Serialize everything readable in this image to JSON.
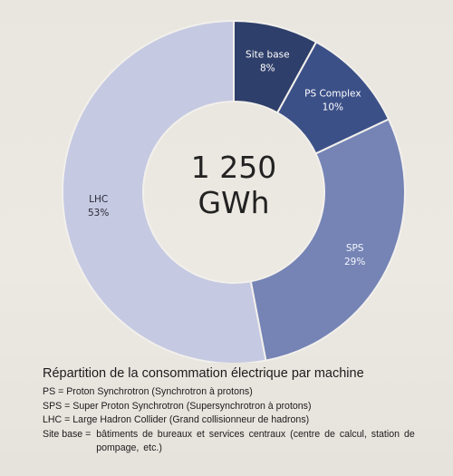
{
  "chart_data": {
    "type": "pie",
    "donut": true,
    "center_label_lines": [
      "1 250",
      "GWh"
    ],
    "slices": [
      {
        "label": "Site base",
        "value": 8,
        "value_label": "8%",
        "color": "#2f3f6b",
        "text_color": "#ffffff"
      },
      {
        "label": "PS Complex",
        "value": 10,
        "value_label": "10%",
        "color": "#3c5088",
        "text_color": "#ffffff"
      },
      {
        "label": "SPS",
        "value": 29,
        "value_label": "29%",
        "color": "#7584b5",
        "text_color": "#f4f5fb"
      },
      {
        "label": "LHC",
        "value": 53,
        "value_label": "53%",
        "color": "#c5c9e1",
        "text_color": "#2a2a38"
      }
    ]
  },
  "caption": {
    "title": "Répartition de la consommation électrique par machine",
    "legend": [
      {
        "key": "PS",
        "separator": " = ",
        "description": "Proton Synchrotron (Synchrotron à protons)"
      },
      {
        "key": "SPS",
        "separator": " = ",
        "description": "Super Proton Synchrotron (Supersynchrotron à protons)"
      },
      {
        "key": "LHC",
        "separator": " = ",
        "description": "Large Hadron Collider (Grand collisionneur de hadrons)"
      },
      {
        "key": "Site base",
        "separator": " =  ",
        "description": "bâtiments de bureaux et services centraux (centre de calcul, station de pompage, etc.)"
      }
    ]
  }
}
